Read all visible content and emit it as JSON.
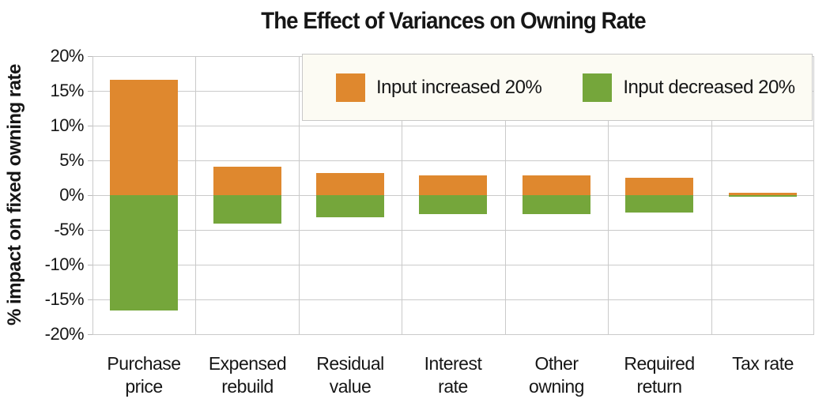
{
  "title": "The Effect of Variances on Owning Rate",
  "colors": {
    "orange": "#df882e",
    "green": "#75a63b",
    "gridline": "#cacaca",
    "text": "#161616",
    "legend_background": "#fcfbf3",
    "plot_background": "#ffffff"
  },
  "chart_data": {
    "type": "bar",
    "title": "The Effect of Variances on Owning Rate",
    "xlabel": "",
    "ylabel": "% impact on fixed owning rate",
    "ylim": [
      -20,
      20
    ],
    "ytick_step": 5,
    "ytick_labels": [
      "20%",
      "15%",
      "10%",
      "5%",
      "0%",
      "-5%",
      "-10%",
      "-15%",
      "-20%"
    ],
    "grid": true,
    "legend_position": "top-right-inside",
    "categories": [
      "Purchase\nprice",
      "Expensed\nrebuild",
      "Residual\nvalue",
      "Interest\nrate",
      "Other\nowning",
      "Required\nreturn",
      "Tax rate"
    ],
    "series": [
      {
        "name": "Input increased 20%",
        "color": "#df882e",
        "values": [
          16.6,
          4.1,
          3.2,
          2.8,
          2.8,
          2.5,
          0.3
        ]
      },
      {
        "name": "Input decreased 20%",
        "color": "#75a63b",
        "values": [
          -16.6,
          -4.1,
          -3.2,
          -2.7,
          -2.7,
          -2.5,
          -0.2
        ]
      }
    ]
  }
}
